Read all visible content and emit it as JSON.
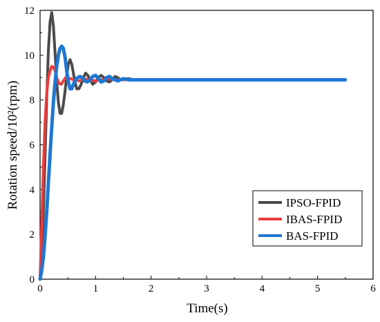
{
  "chart_data": {
    "type": "line",
    "xlabel": "Time(s)",
    "ylabel": "Rotation speed/10²(rpm)",
    "xlim": [
      0,
      6
    ],
    "ylim": [
      0,
      12
    ],
    "x_ticks": [
      "0",
      "1",
      "2",
      "3",
      "4",
      "5",
      "6"
    ],
    "y_ticks": [
      "0",
      "2",
      "4",
      "6",
      "8",
      "10",
      "12"
    ],
    "legend_position": "bottom-right",
    "series": [
      {
        "name": "IPSO-FPID",
        "color": "#4a4a4a",
        "x": [
          0,
          0.03,
          0.06,
          0.09,
          0.12,
          0.15,
          0.18,
          0.21,
          0.24,
          0.27,
          0.3,
          0.33,
          0.36,
          0.39,
          0.42,
          0.45,
          0.48,
          0.51,
          0.54,
          0.57,
          0.6,
          0.63,
          0.66,
          0.7,
          0.74,
          0.78,
          0.82,
          0.86,
          0.9,
          0.95,
          1.0,
          1.05,
          1.1,
          1.15,
          1.2,
          1.25,
          1.3,
          1.35,
          1.4,
          1.45,
          1.5,
          1.6,
          1.7,
          1.8,
          2.0,
          3.0,
          4.0,
          5.0,
          5.5
        ],
        "y": [
          0,
          1.2,
          3.0,
          5.5,
          8.0,
          10.2,
          11.5,
          11.9,
          11.3,
          10.1,
          8.8,
          7.9,
          7.4,
          7.4,
          7.8,
          8.4,
          9.1,
          9.6,
          9.8,
          9.6,
          9.2,
          8.8,
          8.5,
          8.5,
          8.7,
          9.0,
          9.2,
          9.1,
          8.9,
          8.7,
          8.8,
          9.0,
          9.1,
          9.0,
          8.85,
          8.8,
          8.9,
          9.05,
          9.0,
          8.9,
          8.95,
          8.95,
          8.9,
          8.9,
          8.9,
          8.9,
          8.9,
          8.9,
          8.9
        ]
      },
      {
        "name": "IBAS-FPID",
        "color": "#ee3b3b",
        "x": [
          0,
          0.03,
          0.06,
          0.09,
          0.12,
          0.15,
          0.18,
          0.21,
          0.24,
          0.27,
          0.3,
          0.34,
          0.38,
          0.42,
          0.46,
          0.5,
          0.55,
          0.6,
          0.7,
          0.8,
          0.9,
          1.0,
          1.2,
          1.4,
          1.6,
          2.0,
          3.0,
          4.0,
          5.0,
          5.5
        ],
        "y": [
          0,
          2.5,
          5.0,
          7.0,
          8.3,
          9.0,
          9.3,
          9.5,
          9.45,
          9.3,
          9.0,
          8.75,
          8.7,
          8.85,
          9.0,
          9.0,
          8.95,
          8.9,
          8.85,
          8.95,
          8.9,
          8.85,
          8.95,
          8.9,
          8.9,
          8.9,
          8.9,
          8.9,
          8.9,
          8.9
        ]
      },
      {
        "name": "BAS-FPID",
        "color": "#1f77d4",
        "x": [
          0,
          0.03,
          0.06,
          0.09,
          0.12,
          0.15,
          0.18,
          0.21,
          0.24,
          0.27,
          0.3,
          0.33,
          0.36,
          0.39,
          0.42,
          0.45,
          0.48,
          0.51,
          0.54,
          0.57,
          0.6,
          0.64,
          0.68,
          0.72,
          0.76,
          0.8,
          0.85,
          0.9,
          0.95,
          1.0,
          1.05,
          1.1,
          1.15,
          1.2,
          1.25,
          1.3,
          1.4,
          1.5,
          1.6,
          1.8,
          2.0,
          3.0,
          4.0,
          5.0,
          5.5
        ],
        "y": [
          0,
          0.4,
          1.0,
          1.9,
          3.0,
          4.3,
          5.6,
          6.8,
          7.9,
          8.8,
          9.5,
          10.0,
          10.3,
          10.4,
          10.3,
          9.9,
          9.3,
          8.8,
          8.5,
          8.5,
          8.7,
          8.9,
          9.0,
          9.05,
          9.0,
          8.85,
          8.8,
          8.9,
          9.05,
          9.1,
          8.95,
          8.8,
          8.85,
          9.0,
          9.05,
          8.95,
          8.85,
          8.95,
          8.9,
          8.9,
          8.9,
          8.9,
          8.9,
          8.9,
          8.9
        ]
      }
    ]
  }
}
